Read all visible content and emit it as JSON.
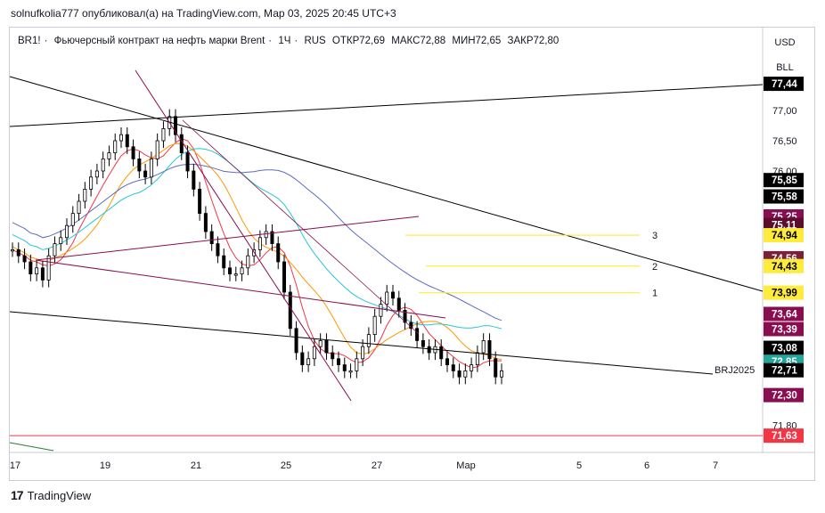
{
  "header": {
    "author_line": "solnufkolia777 опубликовал(а) на TradingView.com, Мар 03, 2025 20:45 UTC+3"
  },
  "legend": {
    "symbol": "BR1!",
    "description": "Фьючерсный контракт на нефть марки Brent",
    "interval": "1Ч",
    "exchange": "RUS",
    "open": "ОТКР72,69",
    "high": "МАКС72,88",
    "low": "МИН72,65",
    "close": "ЗАКР72,80"
  },
  "currency_buttons": [
    "USD",
    "BLL"
  ],
  "footer": {
    "brand": "TradingView"
  },
  "chart_data": {
    "type": "line",
    "title": "BR1! · Фьючерсный контракт на нефть марки Brent · 1Ч · RUS",
    "x_ticks": [
      "17",
      "19",
      "21",
      "25",
      "27",
      "Мар",
      "5",
      "6",
      "7"
    ],
    "y_ticks": [
      "77,00",
      "76,50",
      "76,00",
      "71,80"
    ],
    "ylim": [
      71.5,
      77.7
    ],
    "price_series": {
      "name": "BR1!",
      "values": [
        74.7,
        74.6,
        74.5,
        74.3,
        74.4,
        74.2,
        74.6,
        74.8,
        74.9,
        75.1,
        75.3,
        75.5,
        75.7,
        75.9,
        76.0,
        76.2,
        76.3,
        76.5,
        76.6,
        76.4,
        76.2,
        76.0,
        75.9,
        76.2,
        76.5,
        76.7,
        76.9,
        76.6,
        76.3,
        76.0,
        75.7,
        75.3,
        75.0,
        74.8,
        74.6,
        74.4,
        74.3,
        74.3,
        74.4,
        74.6,
        74.7,
        74.9,
        75.0,
        74.8,
        74.5,
        74.0,
        73.4,
        73.0,
        72.8,
        72.9,
        73.1,
        73.2,
        73.0,
        72.9,
        72.8,
        72.7,
        72.7,
        72.9,
        73.1,
        73.3,
        73.6,
        73.8,
        74.0,
        73.9,
        73.7,
        73.5,
        73.4,
        73.2,
        73.1,
        73.0,
        73.1,
        72.9,
        72.8,
        72.7,
        72.6,
        72.7,
        72.8,
        73.0,
        73.2,
        72.9,
        72.6,
        72.7
      ]
    },
    "price_labels": [
      {
        "text": "77,44",
        "value": 77.44,
        "bg": "#000000",
        "fg": "#ffffff"
      },
      {
        "text": "75,85",
        "value": 75.85,
        "bg": "#000000",
        "fg": "#ffffff"
      },
      {
        "text": "75,58",
        "value": 75.58,
        "bg": "#000000",
        "fg": "#ffffff"
      },
      {
        "text": "75,25",
        "value": 75.25,
        "bg": "#880e4f",
        "fg": "#ffffff"
      },
      {
        "text": "75,11",
        "value": 75.11,
        "bg": "#5a0d2d",
        "fg": "#ffffff"
      },
      {
        "text": "74,94",
        "value": 74.94,
        "bg": "#ffeb3b",
        "fg": "#000000"
      },
      {
        "text": "74,56",
        "value": 74.56,
        "bg": "#7b1f3a",
        "fg": "#ffffff"
      },
      {
        "text": "74,43",
        "value": 74.43,
        "bg": "#ffeb3b",
        "fg": "#000000"
      },
      {
        "text": "73,99",
        "value": 73.99,
        "bg": "#ffeb3b",
        "fg": "#000000"
      },
      {
        "text": "73,64",
        "value": 73.64,
        "bg": "#880e4f",
        "fg": "#ffffff"
      },
      {
        "text": "73,39",
        "value": 73.39,
        "bg": "#880e4f",
        "fg": "#ffffff"
      },
      {
        "text": "73,08",
        "value": 73.08,
        "bg": "#000000",
        "fg": "#ffffff"
      },
      {
        "text": "72,85",
        "value": 72.85,
        "bg": "#26a69a",
        "fg": "#ffffff"
      },
      {
        "text": "72,71",
        "value": 72.71,
        "bg": "#000000",
        "fg": "#ffffff"
      },
      {
        "text": "72,30",
        "value": 72.3,
        "bg": "#880e4f",
        "fg": "#ffffff"
      },
      {
        "text": "71,63",
        "value": 71.63,
        "bg": "#f23645",
        "fg": "#ffffff"
      }
    ],
    "level_lines": [
      {
        "label": "1",
        "value": 73.99,
        "color": "#ffeb3b"
      },
      {
        "label": "2",
        "value": 74.43,
        "color": "#ffeb3b"
      },
      {
        "label": "3",
        "value": 74.94,
        "color": "#ffeb3b"
      }
    ],
    "annotations": [
      {
        "text": "BRJ2025"
      }
    ],
    "colors": {
      "up": "#000000",
      "down": "#000000",
      "ma_fast": "#f23645",
      "ma_mid": "#ff9800",
      "ma_slow": "#26c6da",
      "ma_long": "#5c6bc0",
      "trend": "#000000",
      "fan": "#880e4f",
      "support": "#f23645"
    }
  }
}
